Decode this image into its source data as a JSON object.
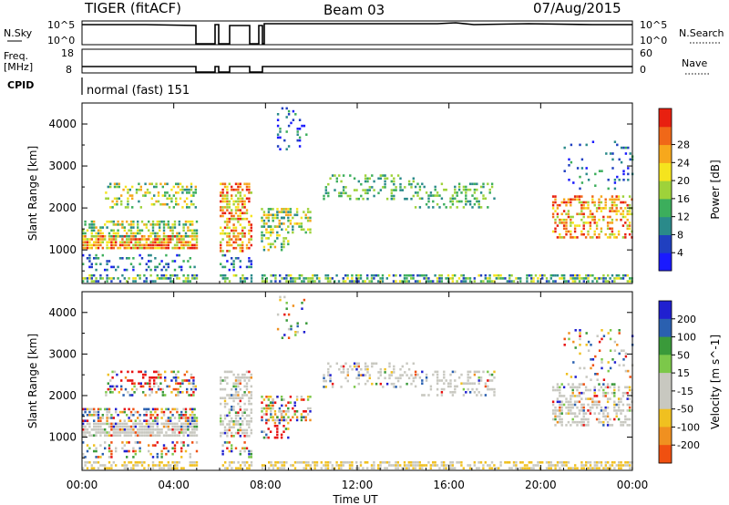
{
  "header": {
    "title": "TIGER (fitACF)",
    "beam": "Beam 03",
    "date": "07/Aug/2015"
  },
  "labels": {
    "nsky": "N.Sky",
    "nsearch": "N.Search",
    "freq": "Freq.",
    "freq_unit": "[MHz]",
    "nave": "Nave",
    "cpid": "CPID",
    "cpid_value": "normal (fast) 151",
    "x_title": "Time UT"
  },
  "strips": {
    "noise_ticks_left": [
      "10^5",
      "10^0"
    ],
    "noise_ticks_right": [
      "10^5",
      "10^0"
    ],
    "freq_ticks_left": [
      "18",
      "8"
    ],
    "nave_ticks_right": [
      "60",
      "0"
    ]
  },
  "colors": {
    "power_scale": [
      "#1a1aff",
      "#2040c0",
      "#2a8a8a",
      "#3cae5c",
      "#9ed23a",
      "#f5e41e",
      "#f7a81c",
      "#f06818",
      "#e82010"
    ],
    "velocity_scale": [
      "#2020d0",
      "#2a60b0",
      "#3a9a3a",
      "#7cc84a",
      "#c8c8c0",
      "#c8c8c0",
      "#f0c020",
      "#f09020",
      "#f05010",
      "#e81010"
    ],
    "ground_scatter": "#c8c8c0"
  },
  "chart_data": [
    {
      "type": "heatmap",
      "panel": "power",
      "ylabel": "Slant Range [km]",
      "xlabel": "Time UT",
      "x_ticks": [
        "00:00",
        "04:00",
        "08:00",
        "12:00",
        "16:00",
        "20:00",
        "00:00"
      ],
      "x_hours": [
        0,
        4,
        8,
        12,
        16,
        20,
        24
      ],
      "y_ticks": [
        1000,
        2000,
        3000,
        4000
      ],
      "ylim": [
        200,
        4500
      ],
      "colorbar_label": "Power [dB]",
      "colorbar_ticks": [
        4,
        8,
        12,
        16,
        20,
        24,
        28
      ],
      "colorbar_range": [
        0,
        32
      ],
      "data_gaps_hours": [
        [
          5.05,
          5.95
        ],
        [
          7.4,
          7.75
        ]
      ]
    },
    {
      "type": "heatmap",
      "panel": "velocity",
      "ylabel": "Slant Range [km]",
      "xlabel": "Time UT",
      "x_ticks": [
        "00:00",
        "04:00",
        "08:00",
        "12:00",
        "16:00",
        "20:00",
        "00:00"
      ],
      "x_hours": [
        0,
        4,
        8,
        12,
        16,
        20,
        24
      ],
      "y_ticks": [
        1000,
        2000,
        3000,
        4000
      ],
      "ylim": [
        200,
        4500
      ],
      "colorbar_label": "Velocity [m s^-1]",
      "colorbar_ticks": [
        200,
        100,
        50,
        15,
        -15,
        -50,
        -100,
        -200
      ],
      "data_gaps_hours": [
        [
          5.05,
          5.95
        ],
        [
          7.4,
          7.75
        ]
      ]
    }
  ]
}
